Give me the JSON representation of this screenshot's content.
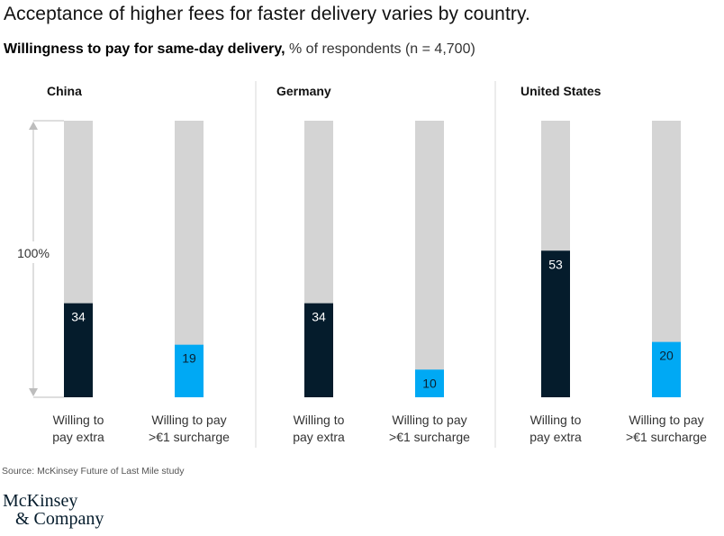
{
  "title": "Acceptance of higher fees for faster delivery varies by country.",
  "subtitle_bold": "Willingness to pay for same-day delivery,",
  "subtitle_rest": " % of respondents (n = 4,700)",
  "source": "Source: McKinsey Future of Last Mile study",
  "logo": {
    "line1": "McKinsey",
    "line2": "& Company"
  },
  "colors": {
    "dark": "#051c2c",
    "blue": "#00a9f4",
    "track": "#d4d4d4",
    "divider": "#d9d9d9",
    "arrow": "#bdbdbd"
  },
  "chart_data": {
    "type": "bar",
    "title": "Acceptance of higher fees for faster delivery varies by country.",
    "subtitle": "Willingness to pay for same-day delivery, % of respondents (n = 4,700)",
    "ylim": [
      0,
      100
    ],
    "scale_label": "100%",
    "categories": [
      "Willing to pay extra",
      "Willing to pay >€1 surcharge"
    ],
    "category_lines": [
      [
        "Willing to",
        "pay extra"
      ],
      [
        "Willing to pay",
        ">€1 surcharge"
      ]
    ],
    "panels": [
      {
        "name": "China",
        "values": [
          34,
          19
        ]
      },
      {
        "name": "Germany",
        "values": [
          34,
          10
        ]
      },
      {
        "name": "United States",
        "values": [
          53,
          20
        ]
      }
    ],
    "series": [
      {
        "name": "Willing to pay extra",
        "values": [
          34,
          34,
          53
        ]
      },
      {
        "name": "Willing to pay >€1 surcharge",
        "values": [
          19,
          10,
          20
        ]
      }
    ]
  }
}
